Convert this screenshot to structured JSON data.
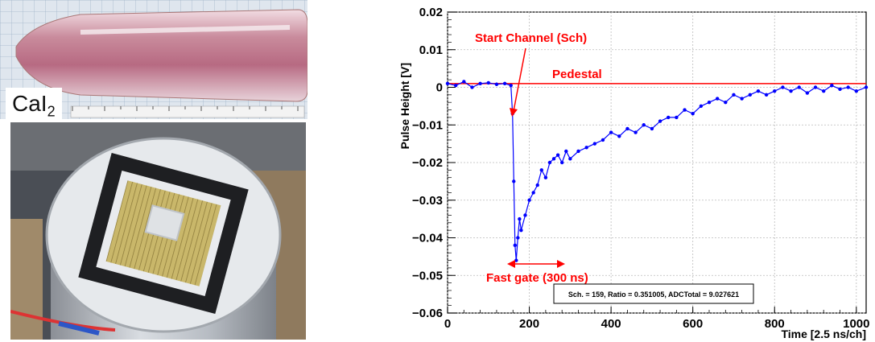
{
  "photos": {
    "top": {
      "label_main": "CaI",
      "label_sub": "2"
    }
  },
  "colors": {
    "data": "#0000ff",
    "annotation": "#ff0000",
    "axis": "#000000"
  },
  "chart_data": {
    "type": "line",
    "xlabel": "Time [2.5 ns/ch]",
    "ylabel": "Pulse Height [V]",
    "xlim": [
      0,
      1024
    ],
    "ylim": [
      -0.06,
      0.02
    ],
    "xticks": [
      0,
      200,
      400,
      600,
      800,
      1000
    ],
    "xtick_labels": [
      "0",
      "200",
      "400",
      "600",
      "800",
      "1000"
    ],
    "yticks": [
      -0.06,
      -0.05,
      -0.04,
      -0.03,
      -0.02,
      -0.01,
      0,
      0.01,
      0.02
    ],
    "ytick_labels": [
      "−0.06",
      "−0.05",
      "−0.04",
      "−0.03",
      "−0.02",
      "−0.01",
      "0",
      "0.01",
      "0.02"
    ],
    "grid": true,
    "pedestal": 0.001,
    "series": [
      {
        "x": [
          0,
          20,
          40,
          60,
          80,
          100,
          120,
          140,
          155,
          159,
          162,
          165,
          168,
          172,
          176,
          180,
          190,
          200,
          210,
          220,
          230,
          240,
          250,
          260,
          270,
          280,
          290,
          300,
          320,
          340,
          360,
          380,
          400,
          420,
          440,
          460,
          480,
          500,
          520,
          540,
          560,
          580,
          600,
          620,
          640,
          660,
          680,
          700,
          720,
          740,
          760,
          780,
          800,
          820,
          840,
          860,
          880,
          900,
          920,
          940,
          960,
          980,
          1000,
          1024
        ],
        "y": [
          0.001,
          0.0005,
          0.0015,
          0.0,
          0.001,
          0.0012,
          0.0008,
          0.001,
          0.0005,
          -0.007,
          -0.025,
          -0.042,
          -0.046,
          -0.04,
          -0.035,
          -0.038,
          -0.034,
          -0.03,
          -0.028,
          -0.026,
          -0.022,
          -0.024,
          -0.02,
          -0.019,
          -0.018,
          -0.02,
          -0.017,
          -0.019,
          -0.017,
          -0.016,
          -0.015,
          -0.014,
          -0.012,
          -0.013,
          -0.011,
          -0.012,
          -0.01,
          -0.011,
          -0.009,
          -0.008,
          -0.008,
          -0.006,
          -0.007,
          -0.005,
          -0.004,
          -0.003,
          -0.004,
          -0.002,
          -0.003,
          -0.002,
          -0.001,
          -0.002,
          -0.001,
          0.0,
          -0.001,
          0.0,
          -0.0015,
          0.0,
          -0.001,
          0.0005,
          -0.0005,
          0.0,
          -0.001,
          0.0
        ]
      }
    ],
    "annotations": {
      "start_channel": "Start Channel (Sch)",
      "pedestal_label": "Pedestal",
      "fast_gate": "Fast gate (300 ns)",
      "stats": "Sch. = 159, Ratio = 0.351005, ADCTotal = 9.027621"
    }
  }
}
